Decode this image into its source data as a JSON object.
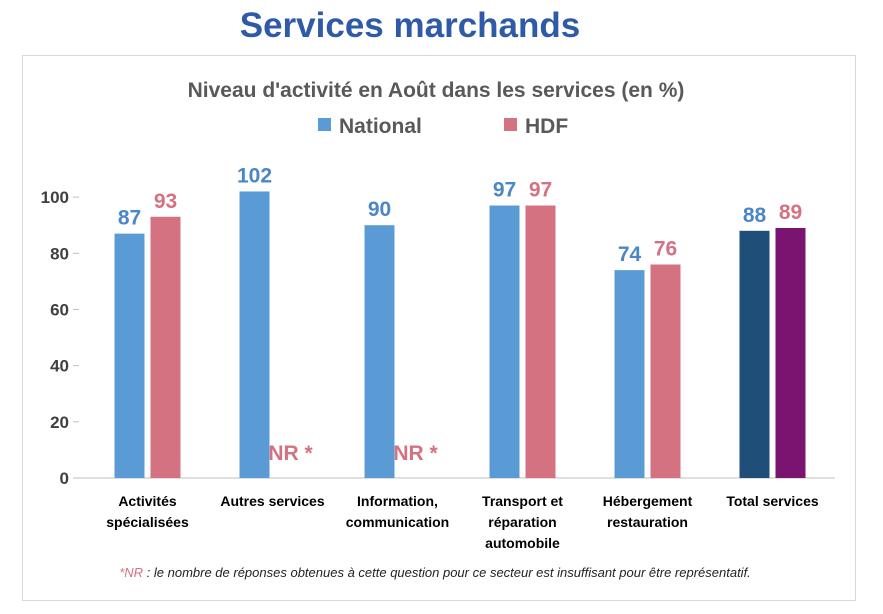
{
  "page_heading": "Services marchands",
  "colors": {
    "national": "#5b9bd5",
    "hdf": "#d47282",
    "total_national": "#1f4e79",
    "total_hdf": "#7b1370",
    "label_national": "#4a86c8",
    "label_hdf": "#d47282",
    "heading": "#2e5aa7"
  },
  "chart_data": {
    "type": "bar",
    "title": "Niveau d'activité en Août dans les services (en %)",
    "categories": [
      [
        "Activités",
        "spécialisées"
      ],
      [
        "Autres services"
      ],
      [
        "Information,",
        "communication"
      ],
      [
        "Transport et",
        "réparation",
        "automobile"
      ],
      [
        "Hébergement",
        "restauration"
      ],
      [
        "Total services"
      ]
    ],
    "series": [
      {
        "name": "National",
        "values": [
          87,
          102,
          90,
          97,
          74,
          88
        ]
      },
      {
        "name": "HDF",
        "values": [
          93,
          null,
          null,
          97,
          76,
          89
        ]
      }
    ],
    "missing_label": "NR *",
    "ylim": [
      0,
      110
    ],
    "yticks": [
      0,
      20,
      40,
      60,
      80,
      100
    ],
    "legend_position": "top",
    "grid": false
  },
  "footnote": {
    "marker": "*NR",
    "text": " : le nombre de réponses obtenues à cette question pour ce secteur est insuffisant pour être représentatif."
  }
}
